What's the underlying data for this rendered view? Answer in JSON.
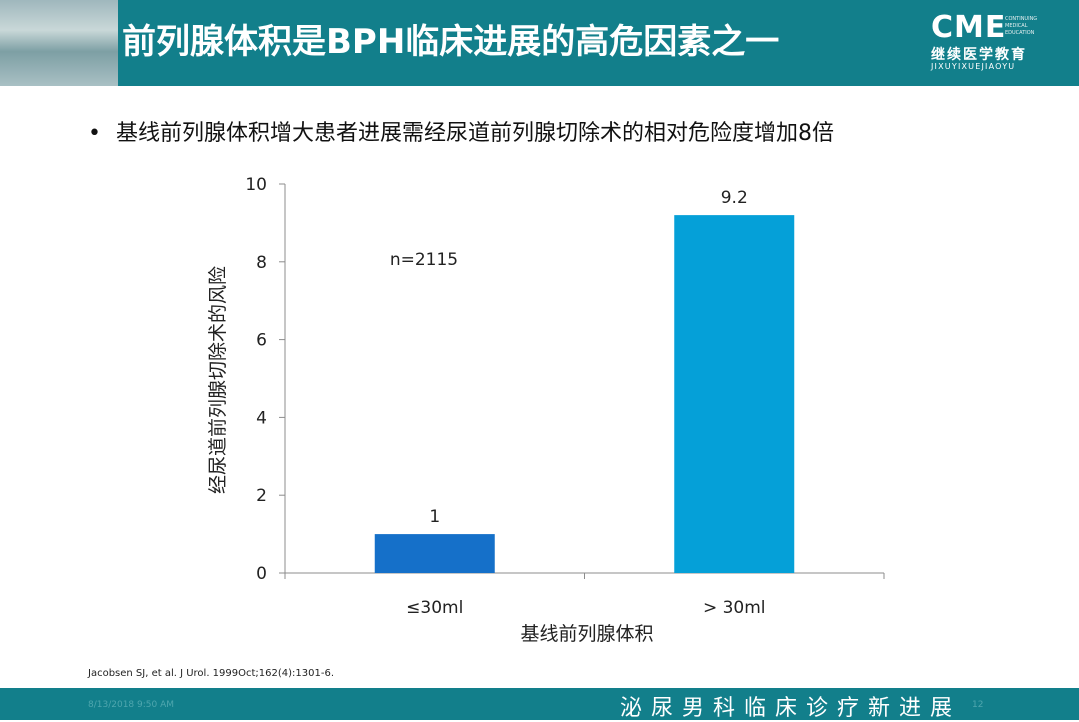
{
  "slide": {
    "title": "前列腺体积是BPH临床进展的高危因素之一",
    "logo": {
      "main": "CME",
      "small_lines": [
        "CONTINUING",
        "MEDICAL",
        "EDUCATION"
      ],
      "chinese": "继续医学教育",
      "pinyin": "JIXUYIXUEJIAOYU"
    },
    "bullet": "基线前列腺体积增大患者进展需经尿道前列腺切除术的相对危险度增加8倍",
    "citation": "Jacobsen SJ, et al. J Urol. 1999Oct;162(4):1301-6.",
    "footer": {
      "date": "8/13/2018 9:50 AM",
      "page": "12",
      "text": "泌尿男科临床诊疗新进展"
    }
  },
  "chart_data": {
    "type": "bar",
    "categories": [
      "≤30ml",
      "> 30ml"
    ],
    "values": [
      1,
      9.2
    ],
    "data_labels": [
      "1",
      "9.2"
    ],
    "colors": [
      "#1570c9",
      "#05a0d8"
    ],
    "xlabel": "基线前列腺体积",
    "ylabel": "经尿道前列腺切除术的风险",
    "ylim": [
      0,
      10
    ],
    "yticks": [
      0,
      2,
      4,
      6,
      8,
      10
    ],
    "annotation": "n=2115",
    "grid": false,
    "legend": "none"
  }
}
